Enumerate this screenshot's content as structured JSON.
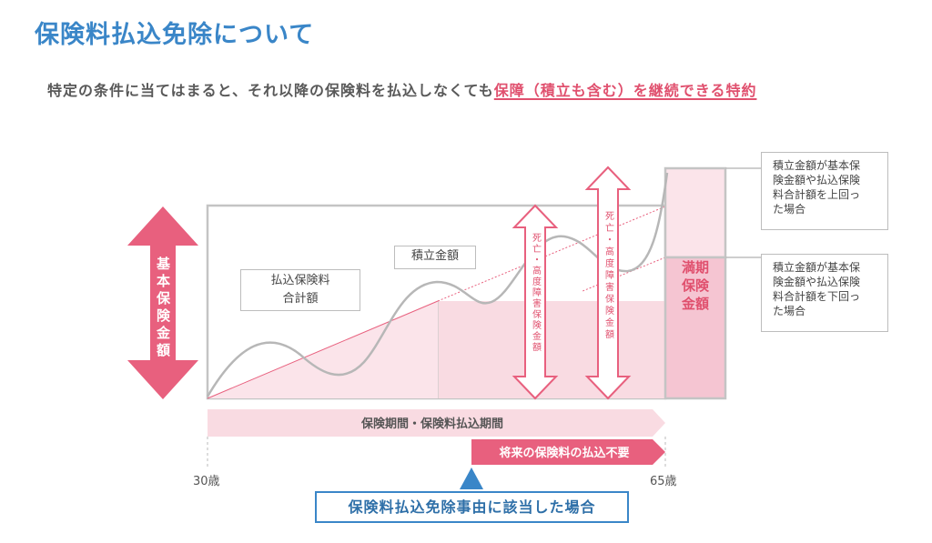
{
  "title": "保険料払込免除について",
  "subtitle": {
    "text": "特定の条件に当てはまると、それ以降の保険料を払込しなくても",
    "highlight": "保障（積立も含む）を継続できる特約"
  },
  "labels": {
    "basic_amount": "基本保険金額",
    "maturity_amount": "満期\n保険\n金額",
    "accumulated_amount": "積立金額",
    "total_premiums": "払込保険料\n合計額",
    "death_disability_1": "死亡・高度障害保険金額",
    "death_disability_2": "死亡・高度障害保険金額",
    "period_bar": "保険期間・保険料払込期間",
    "no_premium_bar": "将来の保険料の払込不要",
    "age_start": "30歳",
    "age_end": "65歳",
    "exemption_reason": "保険料払込免除事由に該当した場合"
  },
  "notes": {
    "above": "積立金額が基本保\n険金額や払込保険\n料合計額を上回っ\nた場合",
    "below": "積立金額が基本保\n険金額や払込保険\n料合計額を下回っ\nた場合"
  },
  "colors": {
    "title_blue": "#3a86c8",
    "pink": "#e8607e",
    "light_pink": "#f9dbe2",
    "gray": "#bdbdbd"
  }
}
